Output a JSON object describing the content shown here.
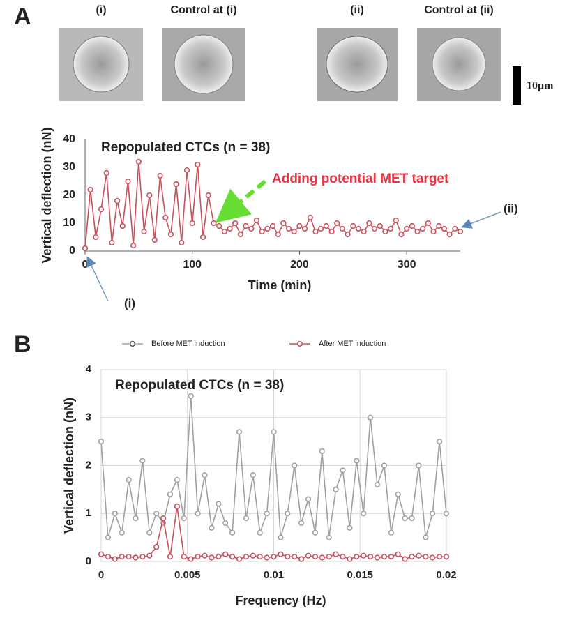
{
  "figure": {
    "panel_labels": [
      "A",
      "B"
    ],
    "image_labels": [
      "(i)",
      "Control at (i)",
      "(ii)",
      "Control at (ii)"
    ],
    "scale_bar": "10μm"
  },
  "chart_data": [
    {
      "type": "line",
      "title": "Repopulated CTCs (n = 38)",
      "x_label": "Time (min)",
      "y_label": "Vertical deflection (nN)",
      "annotations": [
        "Adding potential MET target",
        "(i)",
        "(ii)"
      ],
      "color": "#c8505a",
      "x": [
        0,
        5,
        10,
        15,
        20,
        25,
        30,
        35,
        40,
        45,
        50,
        55,
        60,
        65,
        70,
        75,
        80,
        85,
        90,
        95,
        100,
        105,
        110,
        115,
        120,
        125,
        130,
        135,
        140,
        145,
        150,
        155,
        160,
        165,
        170,
        175,
        180,
        185,
        190,
        195,
        200,
        205,
        210,
        215,
        220,
        225,
        230,
        235,
        240,
        245,
        250,
        255,
        260,
        265,
        270,
        275,
        280,
        285,
        290,
        295,
        300,
        305,
        310,
        315,
        320,
        325,
        330,
        335,
        340,
        345,
        350
      ],
      "values": [
        1,
        22,
        5,
        15,
        28,
        3,
        18,
        9,
        25,
        2,
        32,
        7,
        20,
        4,
        27,
        12,
        6,
        24,
        3,
        29,
        10,
        31,
        5,
        20,
        10,
        9,
        7,
        8,
        10,
        6,
        9,
        8,
        11,
        7,
        8,
        9,
        6,
        10,
        8,
        7,
        9,
        8,
        12,
        7,
        8,
        9,
        7,
        10,
        8,
        6,
        9,
        8,
        7,
        10,
        8,
        9,
        7,
        8,
        11,
        6,
        8,
        9,
        7,
        8,
        10,
        7,
        9,
        8,
        6,
        8,
        7
      ],
      "xlim": [
        0,
        350
      ],
      "ylim": [
        0,
        40
      ],
      "xticks": [
        0,
        100,
        200,
        300
      ],
      "yticks": [
        0,
        10,
        20,
        30,
        40
      ],
      "grid": false
    },
    {
      "type": "line",
      "title": "Repopulated CTCs (n = 38)",
      "x_label": "Frequency (Hz)",
      "y_label": "Vertical deflection (nN)",
      "x": [
        0,
        0.0004,
        0.0008,
        0.0012,
        0.0016,
        0.002,
        0.0024,
        0.0028,
        0.0032,
        0.0036,
        0.004,
        0.0044,
        0.0048,
        0.0052,
        0.0056,
        0.006,
        0.0064,
        0.0068,
        0.0072,
        0.0076,
        0.008,
        0.0084,
        0.0088,
        0.0092,
        0.0096,
        0.01,
        0.0104,
        0.0108,
        0.0112,
        0.0116,
        0.012,
        0.0124,
        0.0128,
        0.0132,
        0.0136,
        0.014,
        0.0144,
        0.0148,
        0.0152,
        0.0156,
        0.016,
        0.0164,
        0.0168,
        0.0172,
        0.0176,
        0.018,
        0.0184,
        0.0188,
        0.0192,
        0.0196,
        0.02
      ],
      "series": [
        {
          "name": "Before MET induction",
          "color": "#a0a0a0",
          "values": [
            2.5,
            0.5,
            1.0,
            0.6,
            1.7,
            0.9,
            2.1,
            0.6,
            1.0,
            0.8,
            1.4,
            1.7,
            0.9,
            3.45,
            1.0,
            1.8,
            0.7,
            1.2,
            0.8,
            0.6,
            2.7,
            0.9,
            1.8,
            0.6,
            1.0,
            2.7,
            0.5,
            1.0,
            2.0,
            0.8,
            1.3,
            0.6,
            2.3,
            0.5,
            1.5,
            1.9,
            0.7,
            2.1,
            1.0,
            3.0,
            1.6,
            2.0,
            0.6,
            1.4,
            0.9,
            0.9,
            2.0,
            0.5,
            1.0,
            2.5,
            1.0
          ]
        },
        {
          "name": "After MET induction",
          "color": "#c8505a",
          "values": [
            0.15,
            0.1,
            0.05,
            0.1,
            0.1,
            0.08,
            0.1,
            0.12,
            0.3,
            0.9,
            0.1,
            1.15,
            0.1,
            0.05,
            0.1,
            0.12,
            0.08,
            0.1,
            0.15,
            0.1,
            0.05,
            0.1,
            0.12,
            0.1,
            0.08,
            0.1,
            0.15,
            0.1,
            0.1,
            0.05,
            0.12,
            0.1,
            0.08,
            0.1,
            0.15,
            0.1,
            0.05,
            0.1,
            0.12,
            0.1,
            0.08,
            0.1,
            0.1,
            0.15,
            0.05,
            0.1,
            0.12,
            0.1,
            0.08,
            0.1,
            0.1
          ]
        }
      ],
      "xlim": [
        0,
        0.02
      ],
      "ylim": [
        0,
        4
      ],
      "xticks": [
        0,
        0.005,
        0.01,
        0.015,
        0.02
      ],
      "yticks": [
        0,
        1,
        2,
        3,
        4
      ],
      "grid": true,
      "legend": "top"
    }
  ]
}
